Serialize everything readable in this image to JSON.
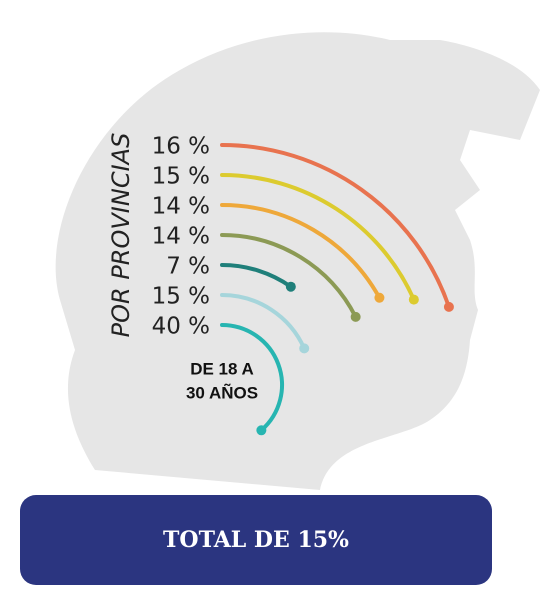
{
  "chart_data": {
    "type": "arc",
    "axis_label": "POR PROVINCIAS",
    "values": [
      16,
      15,
      14,
      14,
      7,
      15,
      40
    ],
    "value_labels": [
      "16 %",
      "15 %",
      "14 %",
      "14 %",
      "7 %",
      "15 %",
      "40 %"
    ],
    "colors": [
      "#e8734f",
      "#dccb2f",
      "#eea83a",
      "#8c9a55",
      "#1f7f7a",
      "#a6d5db",
      "#27b5b1"
    ],
    "annotation": [
      "DE 18 A",
      "30 AÑOS"
    ],
    "total_label": "TOTAL DE 15%"
  }
}
